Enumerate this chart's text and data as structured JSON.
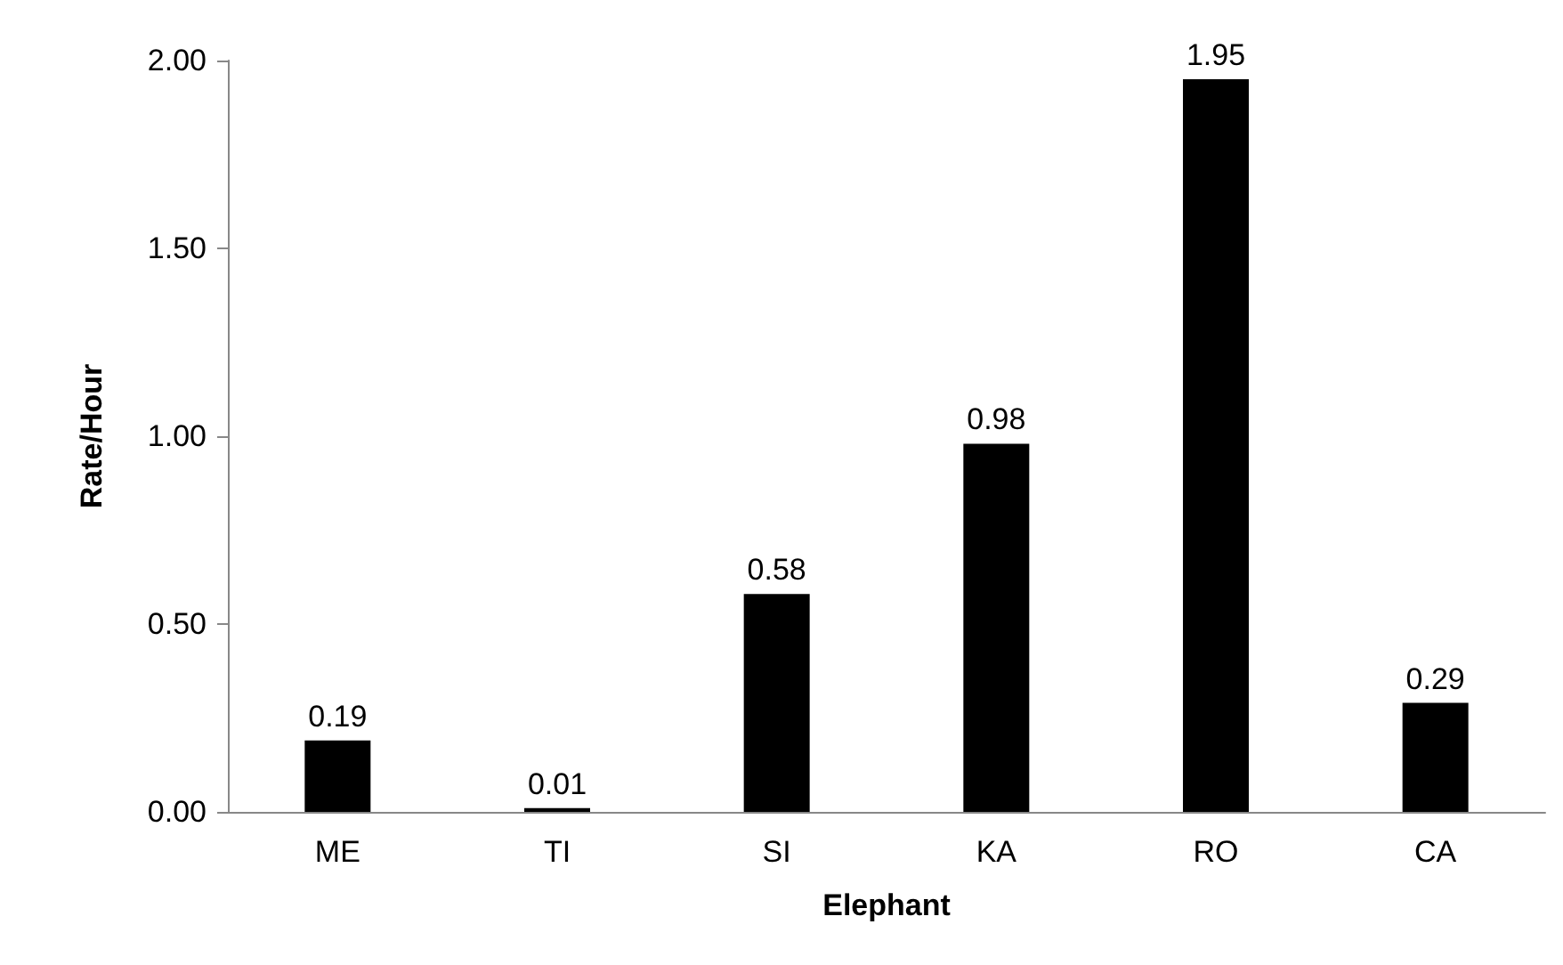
{
  "chart_data": {
    "type": "bar",
    "xlabel": "Elephant",
    "ylabel": "Rate/Hour",
    "categories": [
      "ME",
      "TI",
      "SI",
      "KA",
      "RO",
      "CA"
    ],
    "values": [
      0.19,
      0.01,
      0.58,
      0.98,
      1.95,
      0.29
    ],
    "color": "#000000",
    "ylim": [
      0,
      2
    ],
    "yticks": [
      {
        "value": 0,
        "label": "0.00"
      },
      {
        "value": 0.5,
        "label": "0.50"
      },
      {
        "value": 1,
        "label": "1.00"
      },
      {
        "value": 1.5,
        "label": "1.50"
      },
      {
        "value": 2,
        "label": "2.00"
      }
    ],
    "data_labels": true,
    "grid": false
  }
}
